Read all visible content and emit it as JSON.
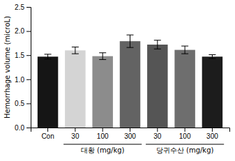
{
  "chart_data": {
    "type": "bar",
    "categories": [
      "Con",
      "30",
      "100",
      "300",
      "30",
      "100",
      "300"
    ],
    "values": [
      1.47,
      1.6,
      1.48,
      1.79,
      1.72,
      1.61,
      1.47
    ],
    "errors": [
      0.05,
      0.07,
      0.07,
      0.13,
      0.09,
      0.08,
      0.04
    ],
    "colors": [
      "#151515",
      "#d4d4d4",
      "#8c8c8c",
      "#636363",
      "#555555",
      "#6e6e6e",
      "#1c1c1c"
    ],
    "y_label": "Hemorrhage volume (microL)",
    "ylim": [
      0.0,
      2.5
    ],
    "yticks": [
      {
        "value": 0.0,
        "label": "0.0"
      },
      0.5,
      {
        "value": 1.0,
        "label": "1.0"
      },
      1.5,
      {
        "value": 2.0,
        "label": "2.0"
      },
      2.5
    ],
    "groups": [
      {
        "label": "대황 (mg/kg)",
        "members": [
          1,
          2,
          3
        ]
      },
      {
        "label": "당귀수산 (mg/kg)",
        "members": [
          4,
          5,
          6
        ]
      }
    ]
  }
}
